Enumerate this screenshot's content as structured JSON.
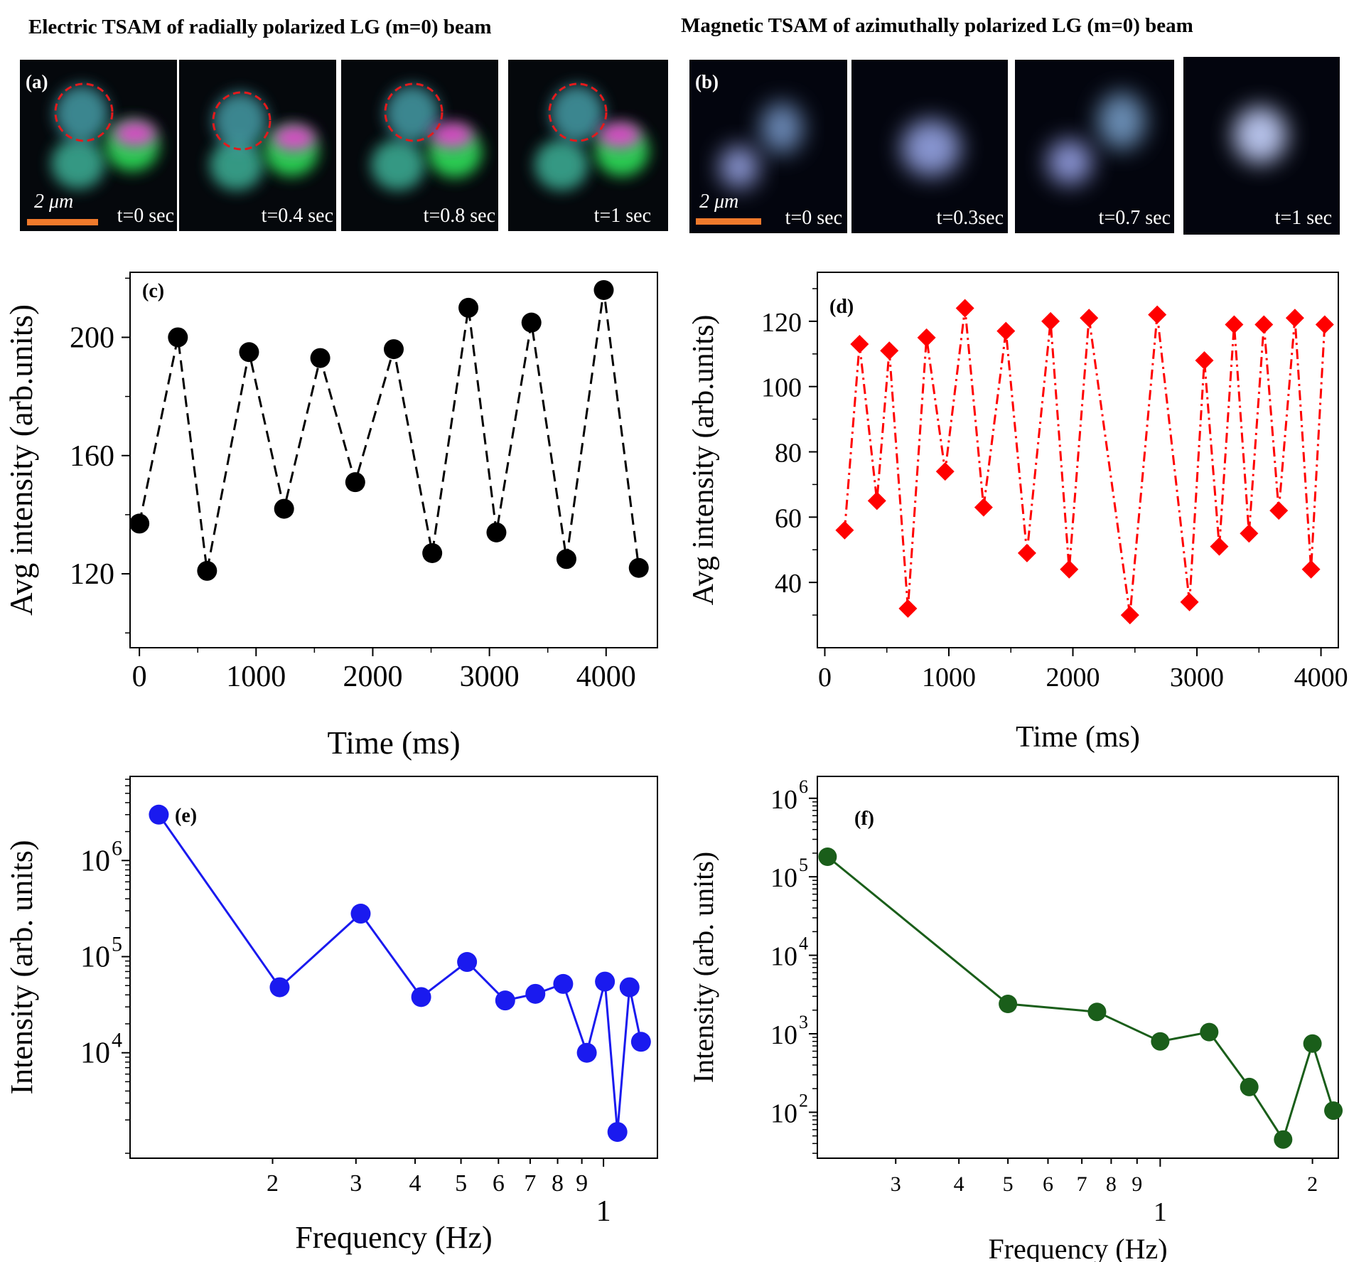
{
  "figure": {
    "title_a": "Electric TSAM of radially polarized  LG (m=0) beam",
    "title_b": "Magnetic TSAM of azimuthally polarized  LG (m=0) beam",
    "scale_label_a": "2 μm",
    "scale_label_b": "2 μm",
    "scale_color": "#f07a2c",
    "circle_color": "#e31a1c",
    "frames_a": [
      {
        "label": "(a)",
        "time": "t=0 sec"
      },
      {
        "label": "",
        "time": "t=0.4 sec"
      },
      {
        "label": "",
        "time": "t=0.8 sec"
      },
      {
        "label": "",
        "time": "t=1 sec"
      }
    ],
    "frames_b": [
      {
        "label": "(b)",
        "time": "t=0 sec"
      },
      {
        "label": "",
        "time": "t=0.3sec"
      },
      {
        "label": "",
        "time": "t=0.7 sec"
      },
      {
        "label": "",
        "time": "t=1 sec"
      }
    ]
  },
  "chart_data": [
    {
      "id": "c",
      "panel_label": "(c)",
      "type": "line",
      "color": "#000000",
      "marker": "circle",
      "line_style": "dashed",
      "xlabel": "Time (ms)",
      "ylabel": "Avg intensity (arb.units)",
      "xlim": [
        -80,
        4440
      ],
      "ylim": [
        95,
        222
      ],
      "yscale": "linear",
      "xticks": [
        0,
        1000,
        2000,
        3000,
        4000
      ],
      "xtick_labels": [
        "0",
        "1000",
        "2000",
        "3000",
        "4000"
      ],
      "yticks": [
        120,
        160,
        200
      ],
      "ytick_labels": [
        "120",
        "160",
        "200"
      ],
      "x": [
        0,
        330,
        580,
        940,
        1240,
        1550,
        1850,
        2180,
        2510,
        2820,
        3060,
        3360,
        3660,
        3980,
        4280
      ],
      "y": [
        137,
        200,
        121,
        195,
        142,
        193,
        151,
        196,
        127,
        210,
        134,
        205,
        125,
        216,
        122
      ]
    },
    {
      "id": "d",
      "panel_label": "(d)",
      "type": "line",
      "color": "#ff0000",
      "marker": "diamond",
      "line_style": "dashdot",
      "xlabel": "Time (ms)",
      "ylabel": "Avg intensity (arb.units)",
      "xlim": [
        -60,
        4140
      ],
      "ylim": [
        20,
        135
      ],
      "yscale": "linear",
      "xticks": [
        0,
        1000,
        2000,
        3000,
        4000
      ],
      "xtick_labels": [
        "0",
        "1000",
        "2000",
        "3000",
        "4000"
      ],
      "yticks": [
        40,
        60,
        80,
        100,
        120
      ],
      "ytick_labels": [
        "40",
        "60",
        "80",
        "100",
        "120"
      ],
      "x": [
        160,
        280,
        420,
        520,
        670,
        820,
        970,
        1130,
        1280,
        1460,
        1630,
        1820,
        1970,
        2130,
        2460,
        2680,
        2940,
        3060,
        3180,
        3300,
        3420,
        3540,
        3660,
        3790,
        3920,
        4030
      ],
      "y": [
        56,
        113,
        65,
        111,
        32,
        115,
        74,
        124,
        63,
        117,
        49,
        120,
        44,
        121,
        30,
        122,
        34,
        108,
        51,
        119,
        55,
        119,
        62,
        121,
        44,
        119
      ]
    },
    {
      "id": "e",
      "panel_label": "(e)",
      "type": "line",
      "color": "#1a1aef",
      "marker": "circle",
      "line_style": "solid",
      "xlabel": "Frequency (Hz)",
      "ylabel": "Intensity (arb. units)",
      "xlim": [
        0.1,
        1.3
      ],
      "ylim": [
        800,
        7500000
      ],
      "xscale": "log",
      "yscale": "log",
      "xticks": [
        0.2,
        0.3,
        0.4,
        0.5,
        0.6,
        0.7,
        0.8,
        0.9,
        1
      ],
      "xtick_labels": [
        "2",
        "3",
        "4",
        "5",
        "6",
        "7",
        "8",
        "9",
        "1"
      ],
      "yticks": [
        10000,
        100000,
        1000000
      ],
      "ytick_labels": [
        "10",
        "10",
        "10"
      ],
      "ytick_exponents": [
        "4",
        "5",
        "6"
      ],
      "x": [
        0.115,
        0.207,
        0.307,
        0.412,
        0.515,
        0.62,
        0.718,
        0.822,
        0.922,
        1.007,
        1.07,
        1.135,
        1.2
      ],
      "y": [
        3000000,
        48000,
        280000,
        38000,
        88000,
        35000,
        41000,
        52000,
        10000,
        55000,
        1500,
        48000,
        13000
      ]
    },
    {
      "id": "f",
      "panel_label": "(f)",
      "type": "line",
      "color": "#1a5e1a",
      "marker": "circle",
      "line_style": "solid",
      "xlabel": "Frequency (Hz)",
      "ylabel": "Intensity (arb. units)",
      "xlim": [
        0.21,
        2.25
      ],
      "ylim": [
        26,
        1900000
      ],
      "xscale": "log",
      "yscale": "log",
      "xticks": [
        0.3,
        0.4,
        0.5,
        0.6,
        0.7,
        0.8,
        0.9,
        1,
        2
      ],
      "xtick_labels": [
        "3",
        "4",
        "5",
        "6",
        "7",
        "8",
        "9",
        "1",
        "2"
      ],
      "yticks": [
        100,
        1000,
        10000,
        100000,
        1000000
      ],
      "ytick_labels": [
        "10",
        "10",
        "10",
        "10",
        "10"
      ],
      "ytick_exponents": [
        "2",
        "3",
        "4",
        "5",
        "6"
      ],
      "x": [
        0.22,
        0.5,
        0.75,
        1.0,
        1.25,
        1.5,
        1.75,
        2.0,
        2.2
      ],
      "y": [
        180000,
        2400,
        1900,
        800,
        1050,
        210,
        45,
        750,
        105
      ]
    }
  ]
}
